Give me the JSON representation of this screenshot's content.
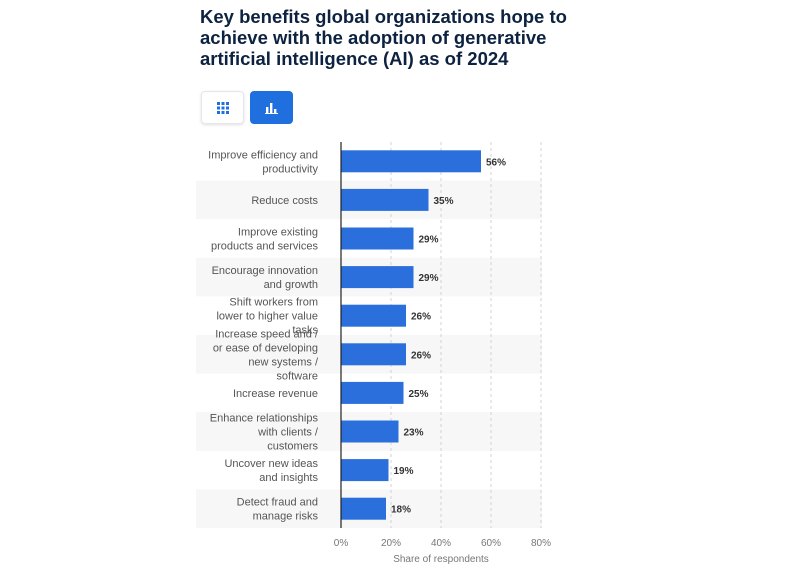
{
  "header": {
    "title": "Key benefits global organizations hope to achieve with the adoption of generative artificial intelligence (AI) as of 2024"
  },
  "view_toggle": {
    "table_icon": "grid-icon",
    "chart_icon": "bar-chart-icon",
    "active": "chart"
  },
  "colors": {
    "bar": "#2a6fdc",
    "title": "#0d2240",
    "active_toggle": "#1f6fde"
  },
  "chart_data": {
    "type": "bar",
    "orientation": "horizontal",
    "categories": [
      [
        "Improve efficiency and",
        "productivity"
      ],
      [
        "Reduce costs"
      ],
      [
        "Improve existing",
        "products and services"
      ],
      [
        "Encourage innovation",
        "and growth"
      ],
      [
        "Shift workers from",
        "lower to higher value",
        "tasks"
      ],
      [
        "Increase speed and /",
        "or ease of developing",
        "new systems /",
        "software"
      ],
      [
        "Increase revenue"
      ],
      [
        "Enhance relationships",
        "with clients /",
        "customers"
      ],
      [
        "Uncover new ideas",
        "and insights"
      ],
      [
        "Detect fraud and",
        "manage risks"
      ]
    ],
    "values": [
      56,
      35,
      29,
      29,
      26,
      26,
      25,
      23,
      19,
      18
    ],
    "value_labels": [
      "56%",
      "35%",
      "29%",
      "29%",
      "26%",
      "26%",
      "25%",
      "23%",
      "19%",
      "18%"
    ],
    "xlim": [
      0,
      80
    ],
    "xticks": [
      0,
      20,
      40,
      60,
      80
    ],
    "xtick_labels": [
      "0%",
      "20%",
      "40%",
      "60%",
      "80%"
    ],
    "xlabel": "Share of respondents",
    "grid": "vertical dashed",
    "legend": "none"
  }
}
